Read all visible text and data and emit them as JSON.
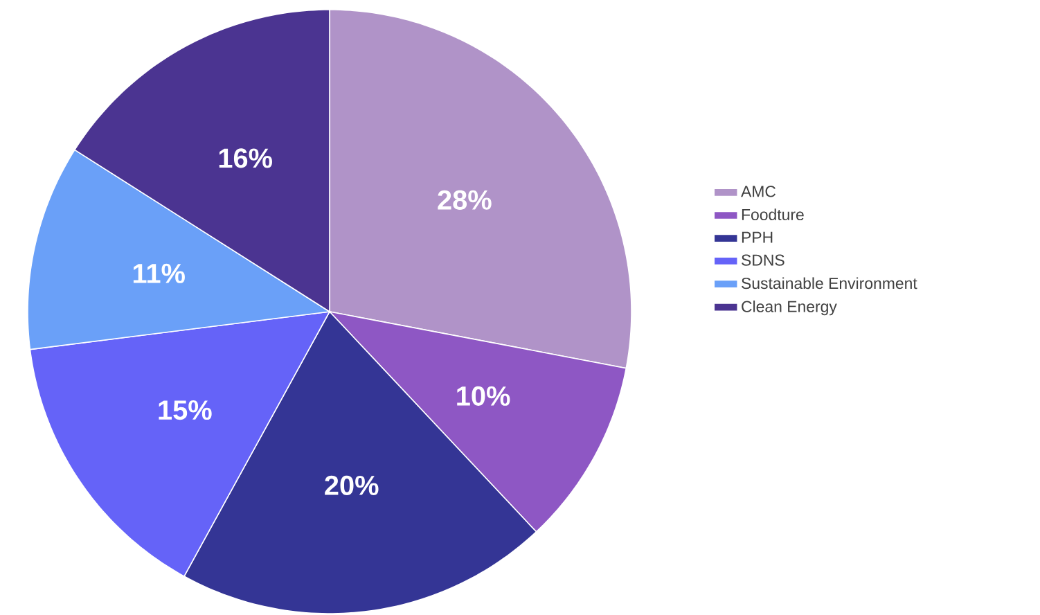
{
  "chart_data": {
    "type": "pie",
    "categories": [
      "AMC",
      "Foodture",
      "PPH",
      "SDNS",
      "Sustainable Environment",
      "Clean Energy"
    ],
    "values": [
      28,
      10,
      20,
      15,
      11,
      16
    ],
    "colors": [
      "#b093c8",
      "#8e57c4",
      "#343595",
      "#6563f8",
      "#6aa0f8",
      "#4b3491"
    ],
    "value_labels": [
      "28%",
      "10%",
      "20%",
      "15%",
      "11%",
      "16%"
    ],
    "legend": "right"
  }
}
